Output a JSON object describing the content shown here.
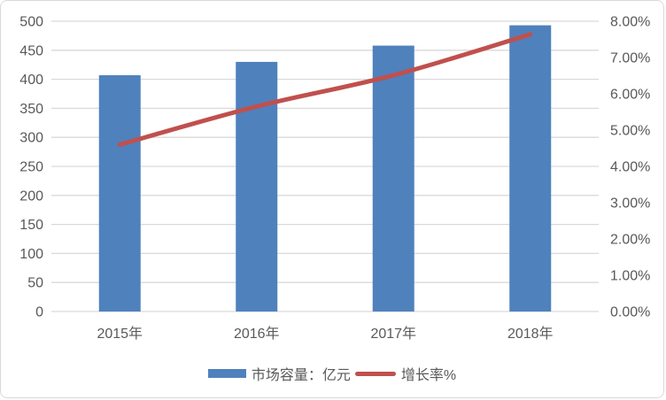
{
  "colors": {
    "bar": "#4F81BD",
    "line": "#C0504D",
    "grid": "#D9D9D9",
    "tick_text": "#595959",
    "background": "#FFFFFF",
    "frame_border": "#D9D9D9"
  },
  "chart_data": {
    "type": "bar",
    "subtype": "bar-line-combo",
    "title": "",
    "xlabel": "",
    "ylabel": "",
    "categories": [
      "2015年",
      "2016年",
      "2017年",
      "2018年"
    ],
    "series": [
      {
        "name": "市场容量：亿元",
        "type": "bar",
        "axis": "left",
        "values": [
          407,
          430,
          458,
          493
        ],
        "color": "#4F81BD"
      },
      {
        "name": "增长率%",
        "type": "line",
        "axis": "right",
        "values": [
          4.6,
          5.65,
          6.51,
          7.64
        ],
        "color": "#C0504D"
      }
    ],
    "left_axis": {
      "min": 0,
      "max": 500,
      "step": 50,
      "ticks": [
        "0",
        "50",
        "100",
        "150",
        "200",
        "250",
        "300",
        "350",
        "400",
        "450",
        "500"
      ]
    },
    "right_axis": {
      "min": 0,
      "max": 8,
      "step": 1,
      "ticks": [
        "0.00%",
        "1.00%",
        "2.00%",
        "3.00%",
        "4.00%",
        "5.00%",
        "6.00%",
        "7.00%",
        "8.00%"
      ]
    },
    "grid": "horizontal",
    "legend_position": "bottom"
  }
}
